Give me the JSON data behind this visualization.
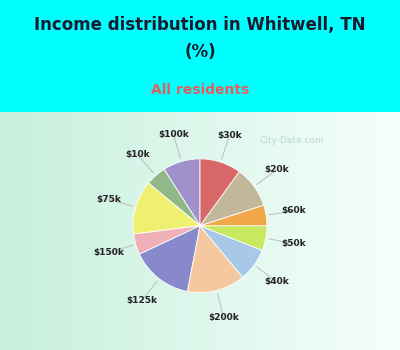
{
  "title_line1": "Income distribution in Whitwell, TN",
  "title_line2": "(%)",
  "subtitle": "All residents",
  "title_color": "#1a1a2e",
  "subtitle_color": "#e06060",
  "bg_cyan": "#00FFFF",
  "labels": [
    "$100k",
    "$10k",
    "$75k",
    "$150k",
    "$125k",
    "$200k",
    "$40k",
    "$50k",
    "$60k",
    "$20k",
    "$30k"
  ],
  "values": [
    9,
    5,
    13,
    5,
    15,
    14,
    8,
    6,
    5,
    10,
    10
  ],
  "colors": [
    "#a090cc",
    "#90b888",
    "#f0f070",
    "#f0b0b8",
    "#8888cc",
    "#f5c8a0",
    "#a8c8e8",
    "#c8e860",
    "#f0a848",
    "#c0b898",
    "#d86868"
  ],
  "startangle": 90,
  "watermark": "City-Data.com"
}
